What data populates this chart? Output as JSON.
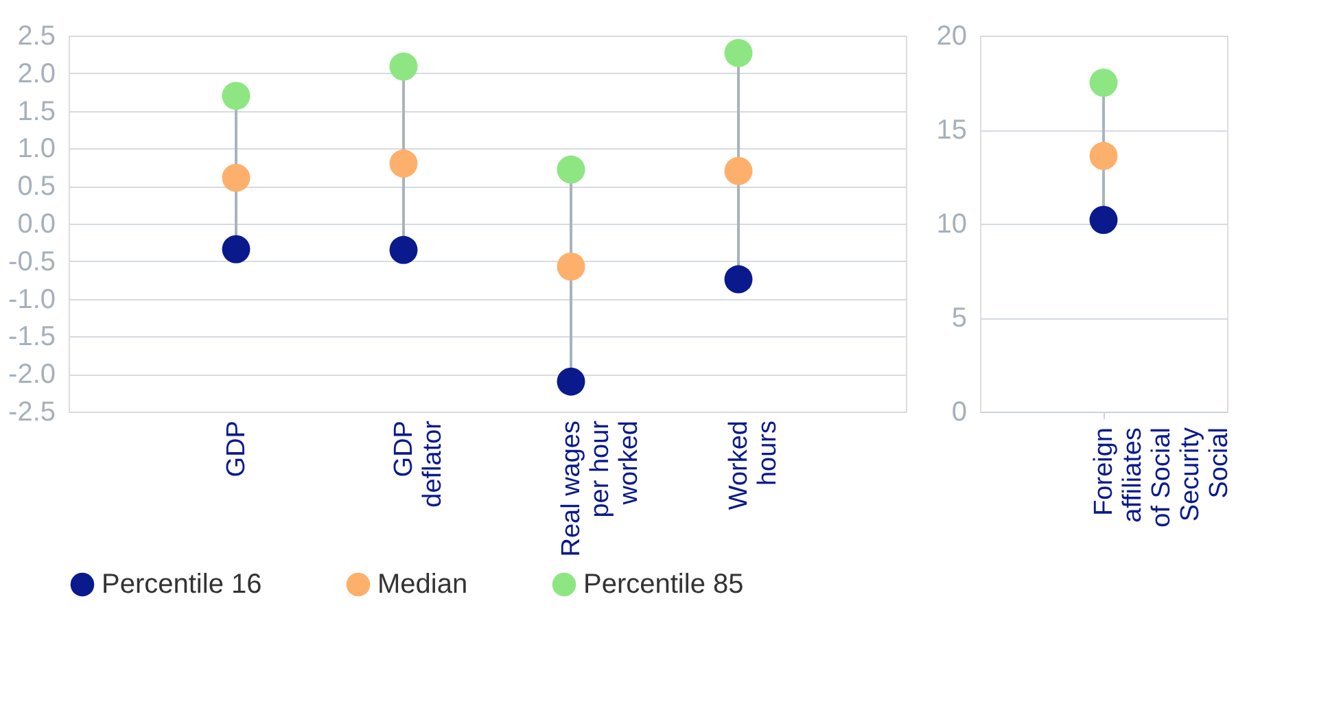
{
  "chart_data": [
    {
      "type": "scatter",
      "categories": [
        "GDP",
        "GDP deflator",
        "Real wages per hour worked",
        "Worked hours"
      ],
      "series": [
        {
          "name": "Percentile 16",
          "color": "#0a1a8c",
          "values": [
            -0.34,
            -0.35,
            -2.1,
            -0.74
          ]
        },
        {
          "name": "Median",
          "color": "#fdb06c",
          "values": [
            0.61,
            0.8,
            -0.57,
            0.7
          ]
        },
        {
          "name": "Percentile 85",
          "color": "#8de682",
          "values": [
            1.7,
            2.09,
            0.72,
            2.27
          ]
        }
      ],
      "ylim": [
        -2.5,
        2.5
      ],
      "yticks": [
        {
          "value": -2.5,
          "label": "-2.5"
        },
        {
          "value": -2,
          "label": "-2.0"
        },
        {
          "value": -1.5,
          "label": "-1.5"
        },
        {
          "value": -1,
          "label": "-1.0"
        },
        {
          "value": -0.5,
          "label": "-0.5"
        },
        {
          "value": 0,
          "label": "0.0"
        },
        {
          "value": 0.5,
          "label": "0.5"
        },
        {
          "value": 1,
          "label": "1.0"
        },
        {
          "value": 1.5,
          "label": "1.5"
        },
        {
          "value": 2,
          "label": "2.0"
        },
        {
          "value": 2.5,
          "label": "2.5"
        }
      ],
      "grid": "y",
      "legend": "bottom",
      "marker": "circle"
    },
    {
      "type": "scatter",
      "categories": [
        "Foreign affiliates of Social Security Social"
      ],
      "series": [
        {
          "name": "Percentile 16",
          "color": "#0a1a8c",
          "values": [
            10.2
          ]
        },
        {
          "name": "Median",
          "color": "#fdb06c",
          "values": [
            13.6
          ]
        },
        {
          "name": "Percentile 85",
          "color": "#8de682",
          "values": [
            17.5
          ]
        }
      ],
      "ylim": [
        0,
        20
      ],
      "yticks": [
        0,
        5,
        10,
        15,
        20
      ],
      "grid": "y",
      "legend": false,
      "marker": "circle"
    }
  ]
}
